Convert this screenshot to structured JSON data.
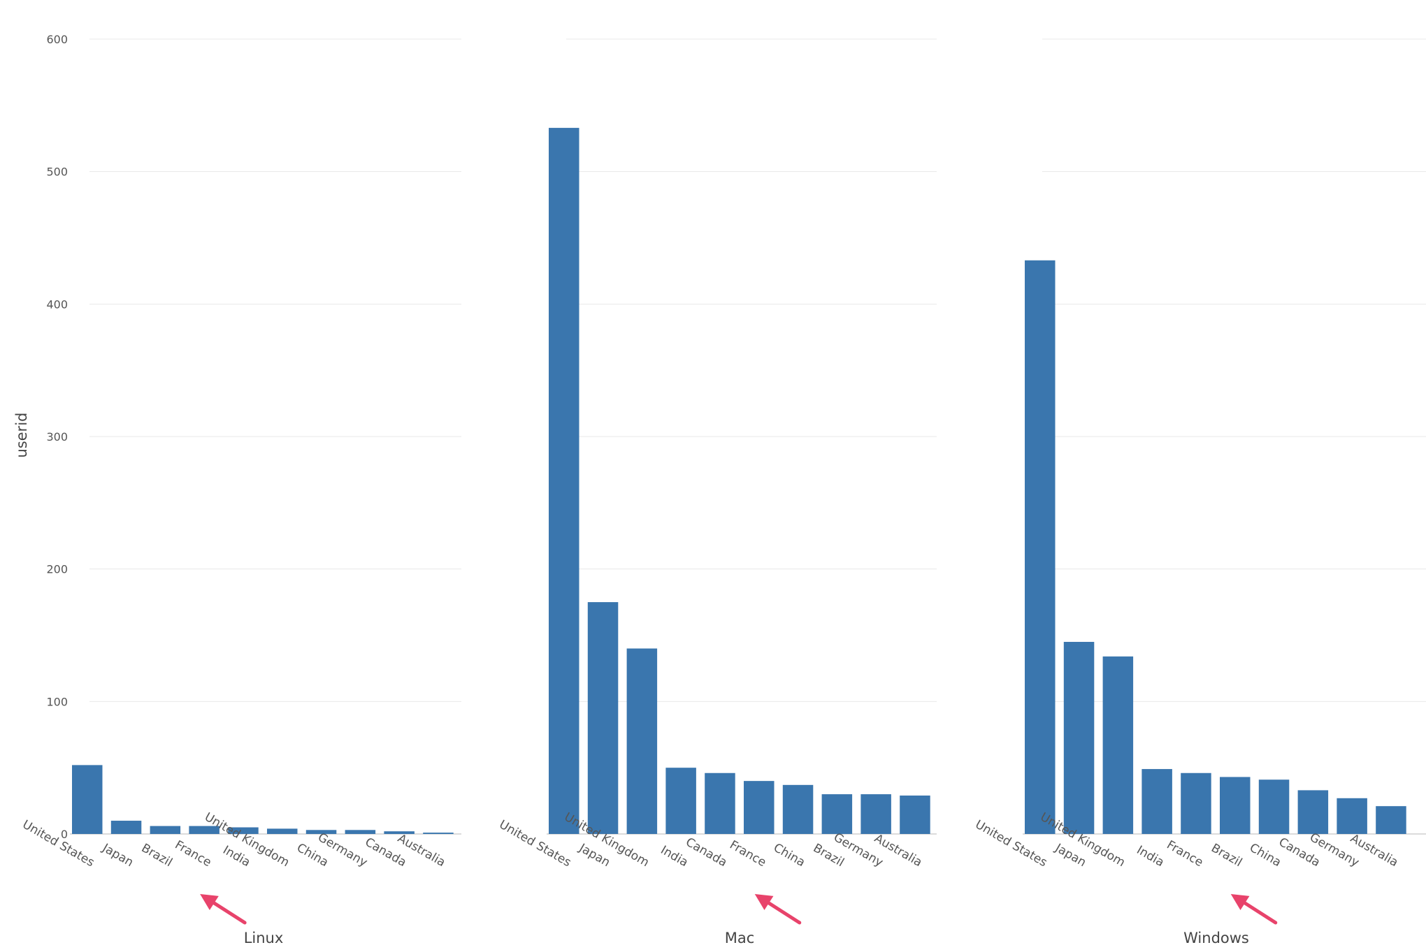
{
  "chart_data": {
    "type": "bar",
    "ylabel": "userid",
    "ylim": [
      0,
      600
    ],
    "yticks": [
      0,
      100,
      200,
      300,
      400,
      500,
      600
    ],
    "grid": true,
    "bar_color": "#3a76ae",
    "annotation_color": "#e8436b",
    "facets": [
      {
        "name": "Linux",
        "categories": [
          "United States",
          "Japan",
          "Brazil",
          "France",
          "India",
          "United Kingdom",
          "China",
          "Germany",
          "Canada",
          "Australia"
        ],
        "values": [
          52,
          10,
          6,
          6,
          5,
          4,
          3,
          3,
          2,
          1
        ],
        "highlighted_category": "France"
      },
      {
        "name": "Mac",
        "categories": [
          "United States",
          "Japan",
          "United Kingdom",
          "India",
          "Canada",
          "France",
          "China",
          "Brazil",
          "Germany",
          "Australia"
        ],
        "values": [
          533,
          175,
          140,
          50,
          46,
          40,
          37,
          30,
          30,
          29
        ],
        "highlighted_category": "France"
      },
      {
        "name": "Windows",
        "categories": [
          "United States",
          "Japan",
          "United Kingdom",
          "India",
          "France",
          "Brazil",
          "China",
          "Canada",
          "Germany",
          "Australia"
        ],
        "values": [
          433,
          145,
          134,
          49,
          46,
          43,
          41,
          33,
          27,
          21
        ],
        "highlighted_category": "Brazil"
      }
    ]
  }
}
